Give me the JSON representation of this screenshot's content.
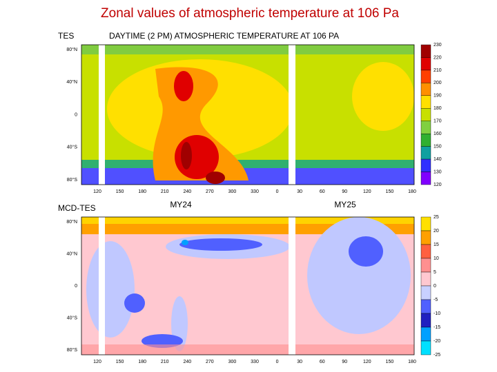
{
  "title": "Zonal values of atmospheric temperature at 106 Pa",
  "panels": [
    {
      "label": "TES",
      "heading": "DAYTIME (2 PM) ATMOSPHERIC TEMPERATURE AT 106 PA",
      "yticks": [
        "80°N",
        "40°N",
        "0",
        "40°S",
        "80°S"
      ],
      "xticks": [
        "120",
        "150",
        "180",
        "210",
        "240",
        "270",
        "300",
        "330",
        "0",
        "30",
        "60",
        "90",
        "120",
        "150",
        "180"
      ],
      "colorbar": [
        "230",
        "220",
        "210",
        "200",
        "190",
        "180",
        "170",
        "160",
        "150",
        "140",
        "130",
        "120"
      ]
    },
    {
      "label": "MCD-TES",
      "years": [
        "MY24",
        "MY25"
      ],
      "yticks": [
        "80°N",
        "40°N",
        "0",
        "40°S",
        "80°S"
      ],
      "xticks": [
        "120",
        "150",
        "180",
        "210",
        "240",
        "270",
        "300",
        "330",
        "0",
        "30",
        "60",
        "90",
        "120",
        "150",
        "180"
      ],
      "colorbar": [
        "25",
        "20",
        "15",
        "10",
        "5",
        "0",
        "-5",
        "-10",
        "-15",
        "-20",
        "-25"
      ]
    }
  ]
}
